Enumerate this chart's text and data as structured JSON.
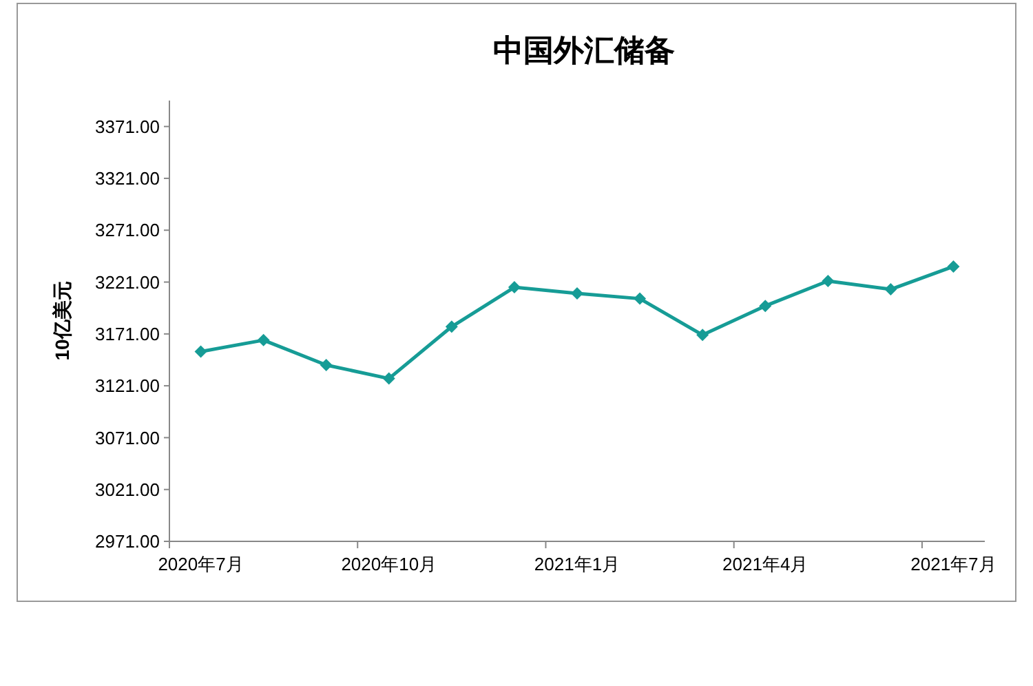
{
  "chart_data": {
    "type": "line",
    "title": "中国外汇储备",
    "ylabel": "10亿美元",
    "categories": [
      "2020年7月",
      null,
      null,
      "2020年10月",
      null,
      null,
      "2021年1月",
      null,
      null,
      "2021年4月",
      null,
      null,
      "2021年7月"
    ],
    "series": [
      {
        "color": "#169c96",
        "values": [
          3154,
          3165,
          3141,
          3128,
          3178,
          3216,
          3210,
          3205,
          3170,
          3198,
          3222,
          3214,
          3236
        ]
      }
    ],
    "ylim": [
      2971,
      3396
    ],
    "yticks": [
      {
        "value": 2971,
        "label": "2971.00"
      },
      {
        "value": 3021,
        "label": "3021.00"
      },
      {
        "value": 3071,
        "label": "3071.00"
      },
      {
        "value": 3121,
        "label": "3121.00"
      },
      {
        "value": 3171,
        "label": "3171.00"
      },
      {
        "value": 3221,
        "label": "3221.00"
      },
      {
        "value": 3271,
        "label": "3271.00"
      },
      {
        "value": 3321,
        "label": "3321.00"
      },
      {
        "value": 3371,
        "label": "3371.00"
      }
    ],
    "marker": "diamond",
    "line_style": "solid"
  }
}
